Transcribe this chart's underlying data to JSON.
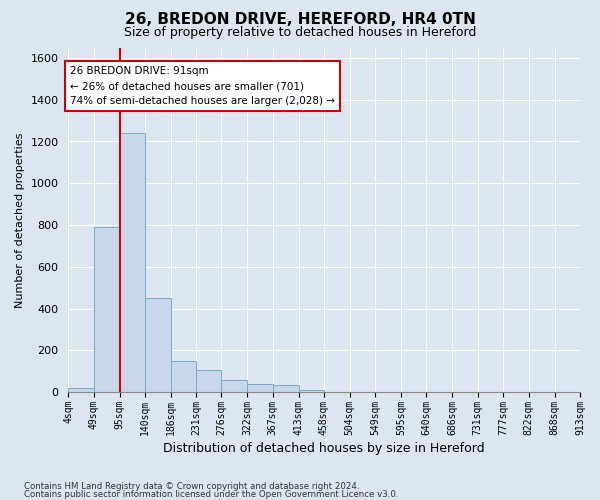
{
  "title": "26, BREDON DRIVE, HEREFORD, HR4 0TN",
  "subtitle": "Size of property relative to detached houses in Hereford",
  "xlabel": "Distribution of detached houses by size in Hereford",
  "ylabel": "Number of detached properties",
  "bin_edges": [
    4,
    49,
    95,
    140,
    186,
    231,
    276,
    322,
    367,
    413,
    458,
    504,
    549,
    595,
    640,
    686,
    731,
    777,
    822,
    868,
    913
  ],
  "bin_labels": [
    "4sqm",
    "49sqm",
    "95sqm",
    "140sqm",
    "186sqm",
    "231sqm",
    "276sqm",
    "322sqm",
    "367sqm",
    "413sqm",
    "458sqm",
    "504sqm",
    "549sqm",
    "595sqm",
    "640sqm",
    "686sqm",
    "731sqm",
    "777sqm",
    "822sqm",
    "868sqm",
    "913sqm"
  ],
  "bar_heights": [
    20,
    790,
    1240,
    450,
    150,
    105,
    60,
    40,
    35,
    10,
    0,
    0,
    0,
    0,
    0,
    0,
    0,
    0,
    0,
    0
  ],
  "bar_color": "#c8d8ea",
  "bar_edge_color": "#7aaac8",
  "ylim": [
    0,
    1650
  ],
  "yticks": [
    0,
    200,
    400,
    600,
    800,
    1000,
    1200,
    1400,
    1600
  ],
  "property_line_x": 95,
  "property_line_color": "#cc0000",
  "annotation_text": "26 BREDON DRIVE: 91sqm\n← 26% of detached houses are smaller (701)\n74% of semi-detached houses are larger (2,028) →",
  "annotation_box_color": "#cc0000",
  "footer_line1": "Contains HM Land Registry data © Crown copyright and database right 2024.",
  "footer_line2": "Contains public sector information licensed under the Open Government Licence v3.0.",
  "bg_color": "#dce6f0",
  "plot_bg_color": "#dce6f0",
  "grid_color": "#ffffff",
  "title_fontsize": 11,
  "subtitle_fontsize": 9
}
